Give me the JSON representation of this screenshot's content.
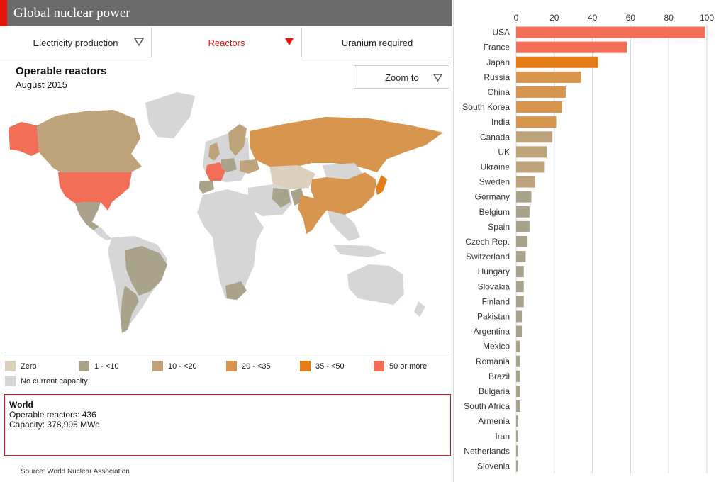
{
  "header": {
    "title": "Global nuclear power",
    "accent_color": "#e3120b",
    "bg_color": "#6b6b6b"
  },
  "tabs": [
    {
      "label": "Electricity production",
      "active": false,
      "icon": "triangle-down-outline-icon"
    },
    {
      "label": "Reactors",
      "active": true,
      "icon": "triangle-down-filled-icon"
    },
    {
      "label": "Uranium required",
      "active": false
    }
  ],
  "map": {
    "title": "Operable reactors",
    "subtitle": "August 2015",
    "zoom_label": "Zoom to",
    "zoom_icon": "triangle-down-outline-icon"
  },
  "legend": [
    {
      "label": "Zero",
      "color": "#dccfbd"
    },
    {
      "label": "1 - <10",
      "color": "#aaa38b"
    },
    {
      "label": "10 - <20",
      "color": "#bda27a"
    },
    {
      "label": "20 - <35",
      "color": "#d8954e"
    },
    {
      "label": "35 - <50",
      "color": "#e47d17"
    },
    {
      "label": "50 or more",
      "color": "#f26e56"
    },
    {
      "label": "No current capacity",
      "color": "#d6d6d6"
    }
  ],
  "info": {
    "title": "World",
    "line1": "Operable reactors: 436",
    "line2": "Capacity: 378,995 MWe"
  },
  "source": "Source: World Nuclear Association",
  "chart_data": {
    "type": "bar",
    "orientation": "horizontal",
    "xlim": [
      0,
      100
    ],
    "x_ticks": [
      0,
      20,
      40,
      60,
      80,
      100
    ],
    "grid": true,
    "categories": [
      "USA",
      "France",
      "Japan",
      "Russia",
      "China",
      "South Korea",
      "India",
      "Canada",
      "UK",
      "Ukraine",
      "Sweden",
      "Germany",
      "Belgium",
      "Spain",
      "Czech Rep.",
      "Switzerland",
      "Hungary",
      "Slovakia",
      "Finland",
      "Pakistan",
      "Argentina",
      "Mexico",
      "Romania",
      "Brazil",
      "Bulgaria",
      "South Africa",
      "Armenia",
      "Iran",
      "Netherlands",
      "Slovenia"
    ],
    "values": [
      99,
      58,
      43,
      34,
      26,
      24,
      21,
      19,
      16,
      15,
      10,
      8,
      7,
      7,
      6,
      5,
      4,
      4,
      4,
      3,
      3,
      2,
      2,
      2,
      2,
      2,
      1,
      1,
      1,
      1
    ],
    "colors": [
      "#f26e56",
      "#f26e56",
      "#e47d17",
      "#d8954e",
      "#d8954e",
      "#d8954e",
      "#d8954e",
      "#bda27a",
      "#bda27a",
      "#bda27a",
      "#bda27a",
      "#aaa38b",
      "#aaa38b",
      "#aaa38b",
      "#aaa38b",
      "#aaa38b",
      "#aaa38b",
      "#aaa38b",
      "#aaa38b",
      "#aaa38b",
      "#aaa38b",
      "#aaa38b",
      "#aaa38b",
      "#aaa38b",
      "#aaa38b",
      "#aaa38b",
      "#aaa38b",
      "#aaa38b",
      "#aaa38b",
      "#aaa38b"
    ]
  }
}
